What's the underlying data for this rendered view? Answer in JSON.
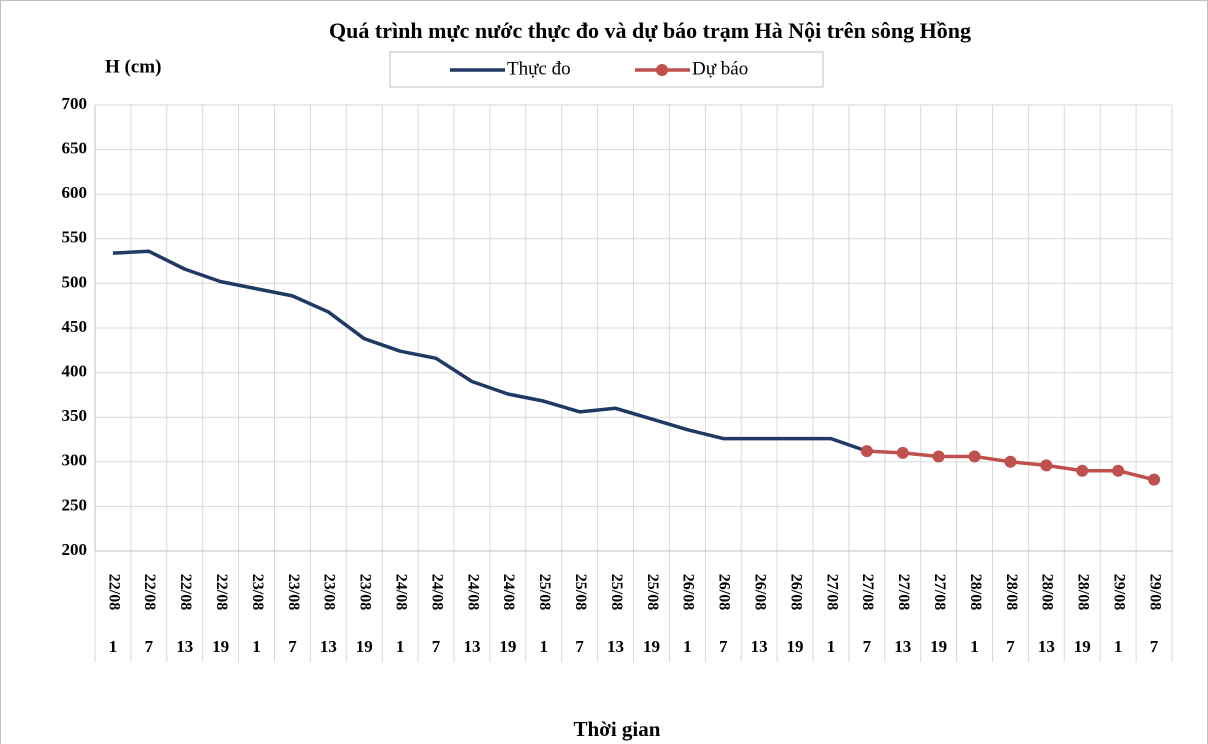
{
  "chart_data": {
    "type": "line",
    "title": "Quá trình  mực nước thực đo và dự báo trạm Hà Nội trên sông Hồng",
    "y_label": "H (cm)",
    "x_label": "Thời gian",
    "categories": [
      "22/08",
      "22/08",
      "22/08",
      "22/08",
      "23/08",
      "23/08",
      "23/08",
      "23/08",
      "24/08",
      "24/08",
      "24/08",
      "24/08",
      "25/08",
      "25/08",
      "25/08",
      "25/08",
      "26/08",
      "26/08",
      "26/08",
      "26/08",
      "27/08",
      "27/08",
      "27/08",
      "27/08",
      "28/08",
      "28/08",
      "28/08",
      "28/08",
      "29/08",
      "29/08"
    ],
    "hours": [
      "1",
      "7",
      "13",
      "19",
      "1",
      "7",
      "13",
      "19",
      "1",
      "7",
      "13",
      "19",
      "1",
      "7",
      "13",
      "19",
      "1",
      "7",
      "13",
      "19",
      "1",
      "7",
      "13",
      "19",
      "1",
      "7",
      "13",
      "19",
      "1",
      "7"
    ],
    "series": [
      {
        "name": "Thực đo",
        "color": "#1f3864",
        "marker": false,
        "values": [
          534,
          536,
          516,
          502,
          494,
          486,
          468,
          438,
          424,
          416,
          390,
          376,
          368,
          356,
          360,
          348,
          336,
          326,
          326,
          326,
          326,
          312,
          null,
          null,
          null,
          null,
          null,
          null,
          null,
          null
        ]
      },
      {
        "name": "Dự báo",
        "color": "#c0504d",
        "marker": true,
        "values": [
          null,
          null,
          null,
          null,
          null,
          null,
          null,
          null,
          null,
          null,
          null,
          null,
          null,
          null,
          null,
          null,
          null,
          null,
          null,
          null,
          null,
          312,
          310,
          306,
          306,
          300,
          296,
          290,
          290,
          280
        ]
      }
    ],
    "ylim": [
      200,
      700
    ],
    "yticks": [
      200,
      250,
      300,
      350,
      400,
      450,
      500,
      550,
      600,
      650,
      700
    ],
    "grid": true
  }
}
